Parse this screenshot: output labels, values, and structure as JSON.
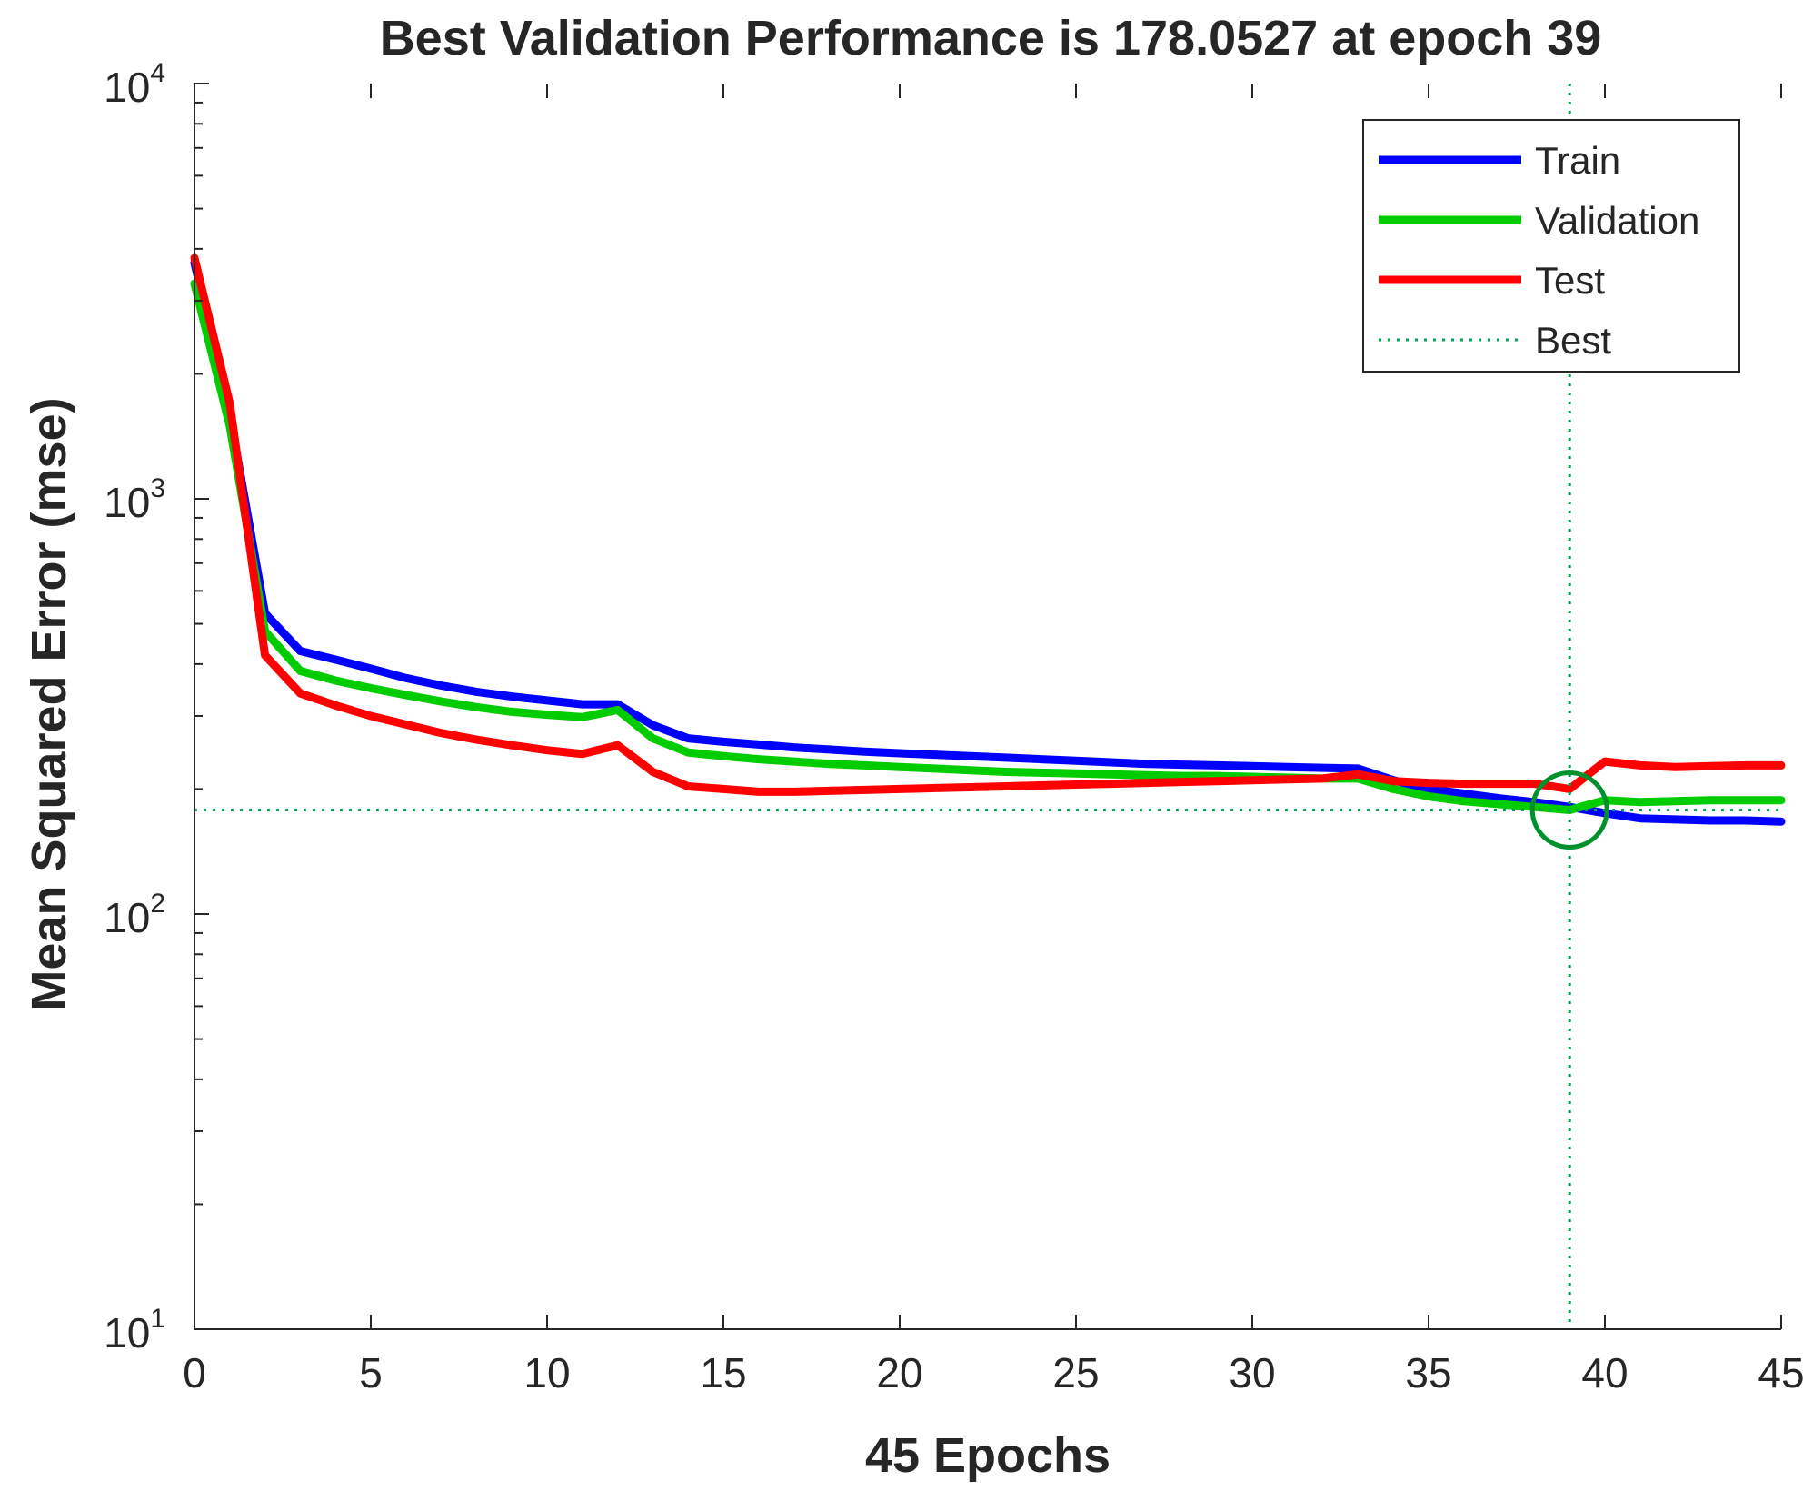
{
  "chart_data": {
    "type": "line",
    "title": "Best Validation Performance is 178.0527 at epoch 39",
    "xlabel": "45 Epochs",
    "ylabel": "Mean Squared Error  (mse)",
    "xlim": [
      0,
      45
    ],
    "ylim": [
      10,
      10000
    ],
    "yscale": "log",
    "grid": false,
    "legend_position": "top-right",
    "x_ticks": [
      0,
      5,
      10,
      15,
      20,
      25,
      30,
      35,
      40,
      45
    ],
    "y_ticks": [
      {
        "value": 10,
        "base": "10",
        "exp": "1"
      },
      {
        "value": 100,
        "base": "10",
        "exp": "2"
      },
      {
        "value": 1000,
        "base": "10",
        "exp": "3"
      },
      {
        "value": 10000,
        "base": "10",
        "exp": "4"
      }
    ],
    "x": [
      0,
      1,
      2,
      3,
      4,
      5,
      6,
      7,
      8,
      9,
      10,
      11,
      12,
      13,
      14,
      15,
      16,
      17,
      18,
      19,
      20,
      21,
      22,
      23,
      24,
      25,
      26,
      27,
      28,
      29,
      30,
      31,
      32,
      33,
      34,
      35,
      36,
      37,
      38,
      39,
      40,
      41,
      42,
      43,
      44,
      45
    ],
    "series": [
      {
        "name": "Train",
        "color": "#0000ff",
        "values": [
          3700,
          1600,
          530,
          430,
          410,
          390,
          370,
          355,
          343,
          334,
          327,
          320,
          320,
          285,
          265,
          260,
          256,
          252,
          249,
          246,
          244,
          242,
          240,
          238,
          236,
          234,
          232,
          230,
          229,
          228,
          227,
          226,
          225,
          224,
          210,
          200,
          195,
          190,
          186,
          181,
          175,
          170,
          169,
          168,
          168,
          167
        ]
      },
      {
        "name": "Validation",
        "color": "#00cc00",
        "values": [
          3300,
          1500,
          480,
          385,
          365,
          350,
          337,
          325,
          315,
          307,
          302,
          298,
          310,
          265,
          245,
          240,
          236,
          233,
          230,
          228,
          226,
          224,
          222,
          220,
          219,
          218,
          217,
          216,
          215,
          215,
          214,
          213,
          212,
          212,
          200,
          192,
          187,
          184,
          181,
          178.0527,
          188,
          186,
          187,
          188,
          188,
          188
        ]
      },
      {
        "name": "Test",
        "color": "#ff0000",
        "values": [
          3800,
          1700,
          420,
          340,
          318,
          300,
          286,
          273,
          263,
          255,
          248,
          243,
          255,
          220,
          203,
          200,
          197,
          197,
          198,
          199,
          200,
          201,
          202,
          203,
          204,
          205,
          206,
          207,
          208,
          209,
          210,
          211,
          212,
          217,
          209,
          207,
          206,
          206,
          206,
          200,
          233,
          228,
          226,
          227,
          228,
          228
        ]
      }
    ],
    "best": {
      "label": "Best",
      "epoch": 39,
      "value": 178.0527,
      "color": "#00a651"
    }
  }
}
